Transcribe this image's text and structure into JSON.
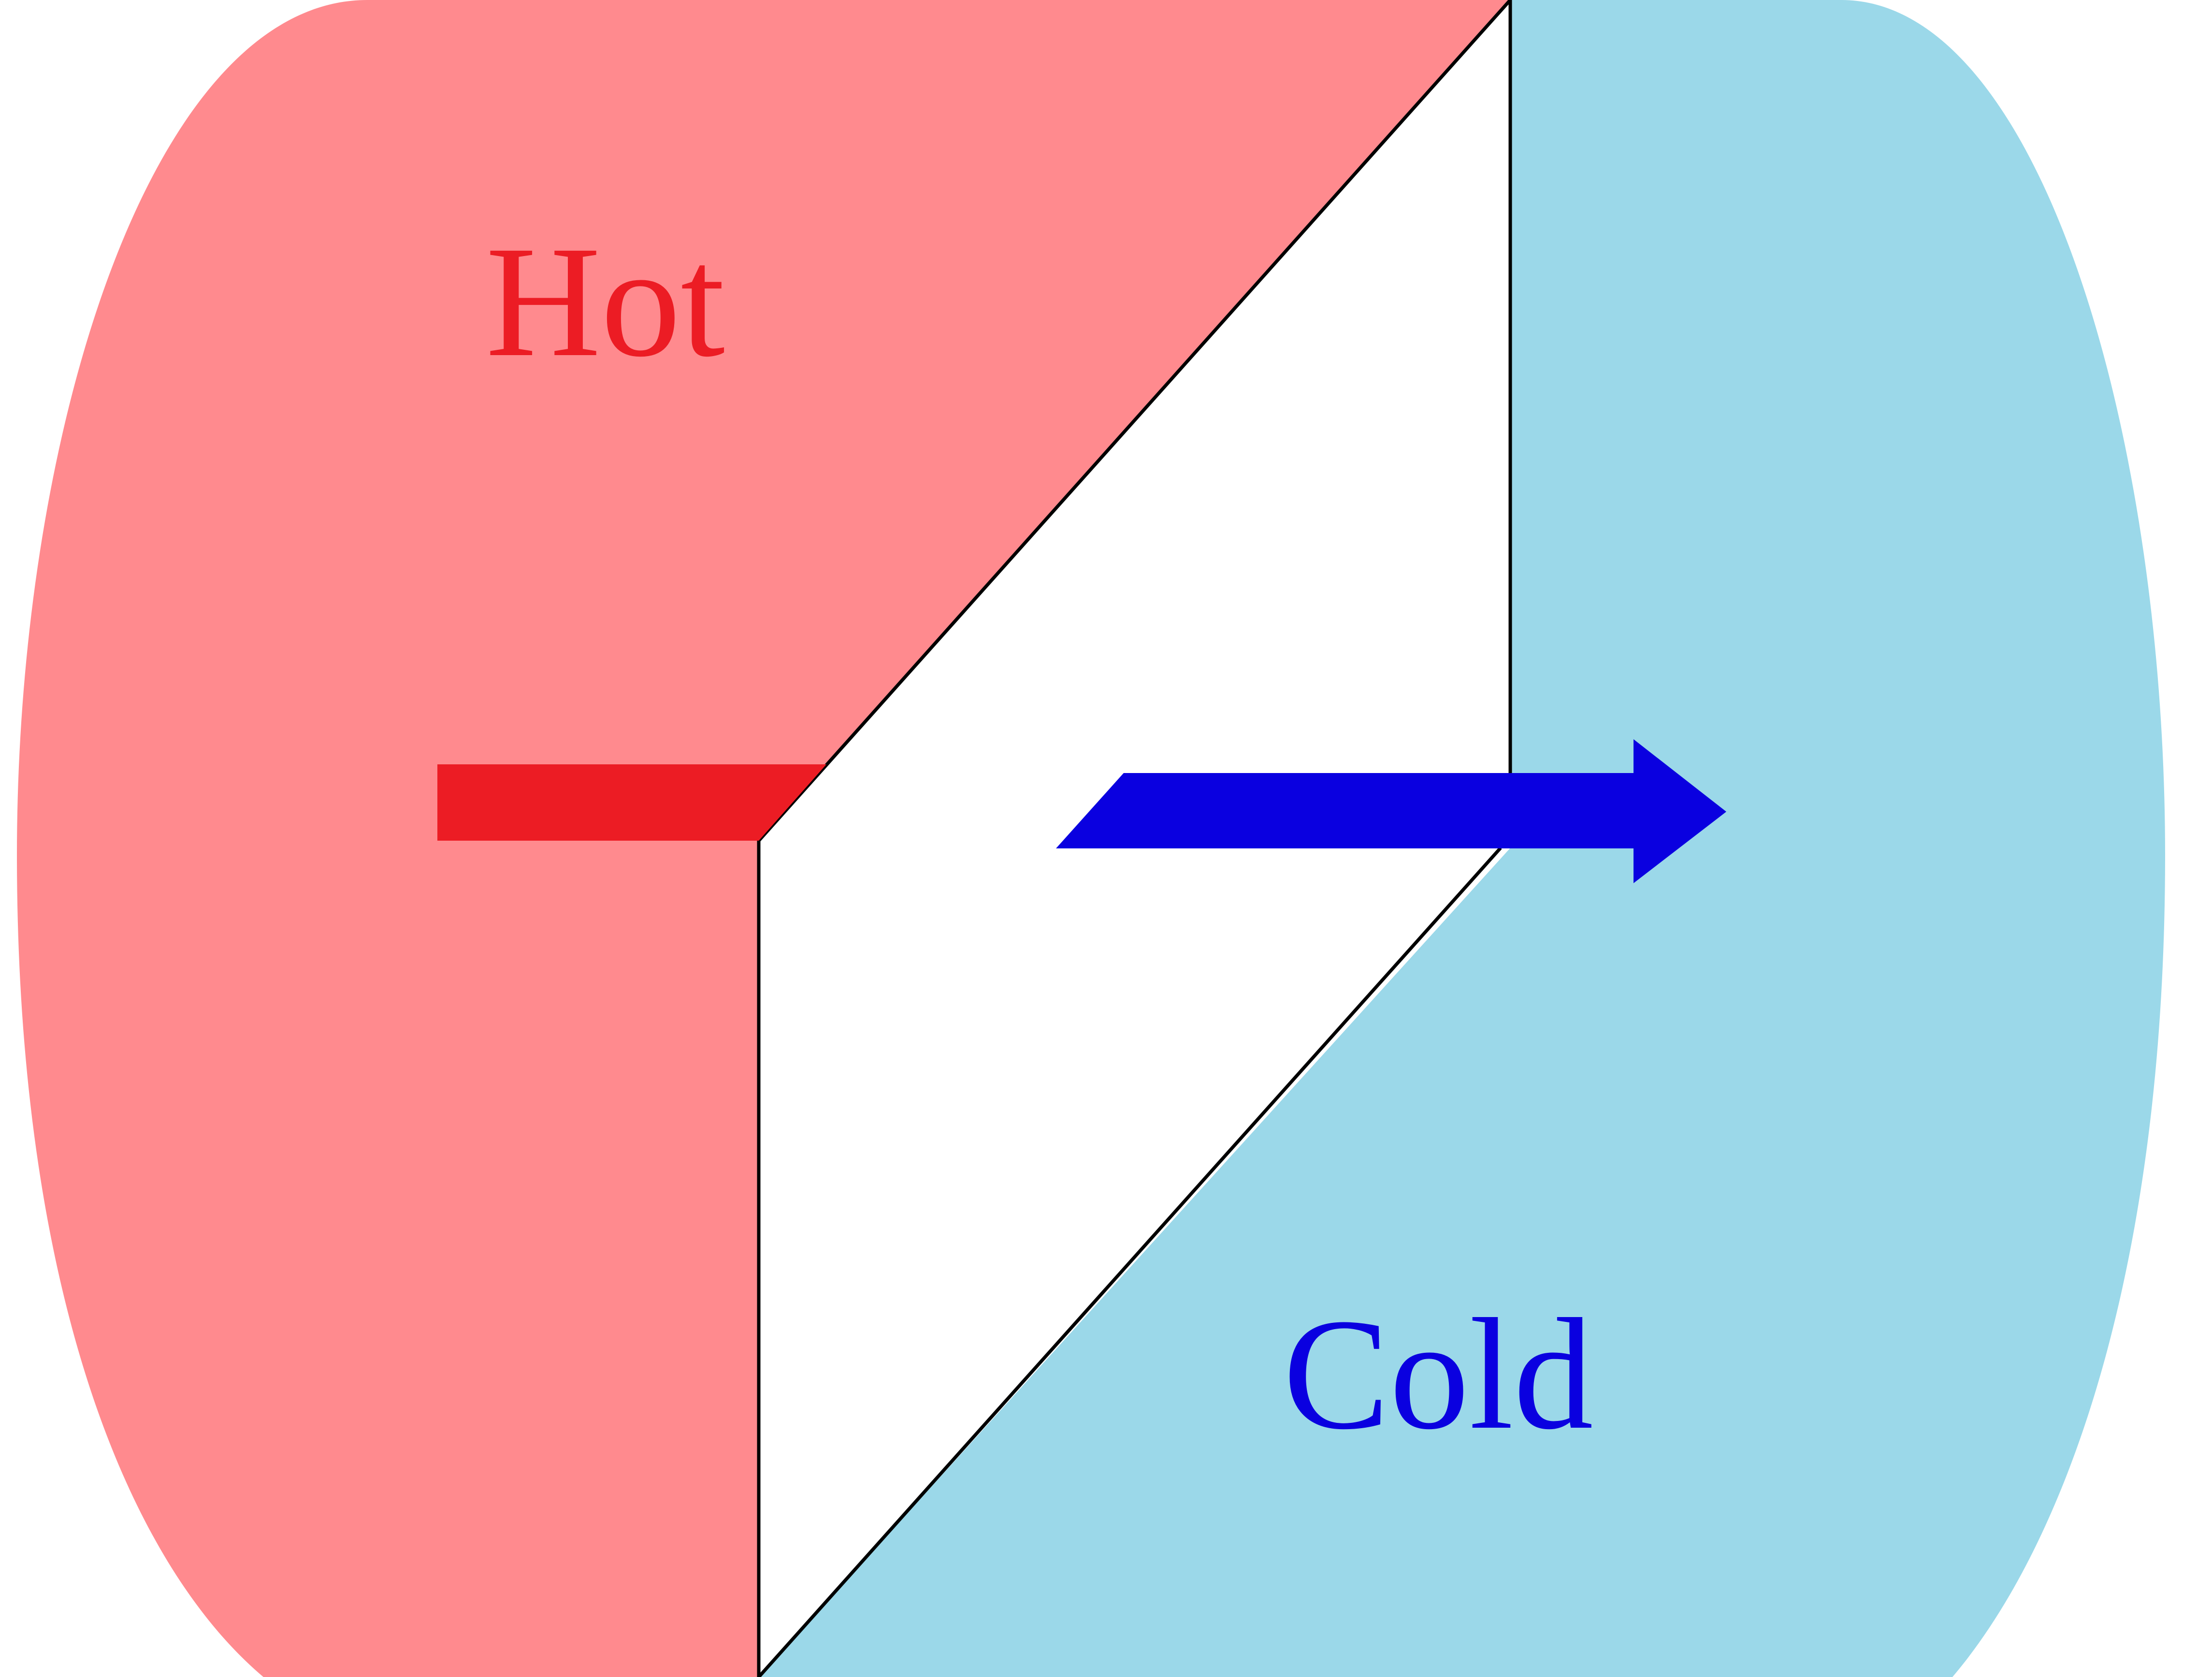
{
  "diagram": {
    "hot_label": "Hot",
    "cold_label": "Cold",
    "colors": {
      "hot_fill": "#FF8A8E",
      "hot_accent": "#EC1C24",
      "cold_fill": "#9BD8E9",
      "cold_accent": "#0A00E0",
      "wall_fill": "#FFFFFF",
      "outline": "#000000"
    },
    "arrows": [
      {
        "name": "hot-flow-arrow",
        "direction": "right",
        "color_key": "hot_accent"
      },
      {
        "name": "cold-flow-arrow",
        "direction": "right",
        "color_key": "cold_accent"
      }
    ]
  }
}
